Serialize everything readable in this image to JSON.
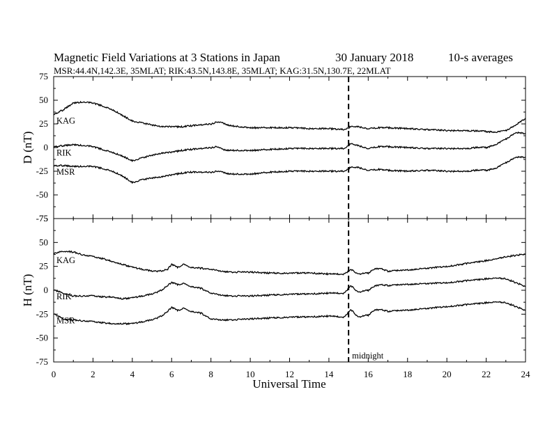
{
  "header": {
    "title": "Magnetic Field Variations at 3 Stations in Japan",
    "date": "30 January  2018",
    "averaging": "10-s averages",
    "stations": "MSR:44.4N,142.3E, 35MLAT;  RIK:43.5N,143.8E, 35MLAT;  KAG:31.5N,130.7E, 22MLAT"
  },
  "chart_data": [
    {
      "type": "line",
      "panel": "D",
      "ylabel": "D (nT)",
      "ylim": [
        -75,
        75
      ],
      "yticks": [
        75,
        50,
        25,
        0,
        -25,
        -50,
        -75
      ],
      "xlim": [
        0,
        24
      ],
      "xticks": [
        0,
        2,
        4,
        6,
        8,
        10,
        12,
        14,
        16,
        18,
        20,
        22,
        24
      ],
      "grid": false,
      "series": [
        {
          "name": "KAG",
          "x": [
            0,
            0.5,
            1,
            1.5,
            2,
            2.5,
            3,
            3.5,
            4,
            4.5,
            5,
            5.5,
            6,
            6.5,
            7,
            7.5,
            8,
            8.3,
            8.6,
            9,
            9.5,
            10,
            11,
            12,
            13,
            14,
            14.8,
            15.1,
            15.5,
            16,
            16.5,
            17,
            18,
            19,
            20,
            21,
            22,
            22.5,
            23,
            23.5,
            24
          ],
          "y": [
            35,
            40,
            47,
            48,
            47,
            44,
            40,
            34,
            28,
            26,
            24,
            22,
            22,
            22,
            23,
            24,
            25,
            27,
            26,
            23,
            22,
            21,
            21,
            21,
            20,
            20,
            19,
            22,
            22,
            20,
            21,
            21,
            20,
            19,
            18,
            18,
            17,
            16,
            18,
            24,
            31
          ]
        },
        {
          "name": "RIK",
          "x": [
            0,
            0.5,
            1,
            1.5,
            2,
            2.5,
            3,
            3.5,
            4,
            4.5,
            5,
            5.5,
            6,
            6.5,
            7,
            7.5,
            8,
            8.3,
            8.6,
            9,
            9.5,
            10,
            11,
            12,
            13,
            14,
            14.8,
            15.1,
            15.5,
            16,
            16.5,
            17,
            18,
            19,
            20,
            21,
            21.5,
            22,
            22.5,
            23,
            23.5,
            24
          ],
          "y": [
            1,
            2,
            3,
            2,
            1,
            -2,
            -5,
            -9,
            -14,
            -11,
            -8,
            -6,
            -5,
            -3,
            -2,
            -1,
            0,
            1,
            -2,
            -3,
            -3,
            -3,
            -2,
            -1,
            -1,
            -1,
            -1,
            4,
            2,
            -1,
            1,
            1,
            0,
            -1,
            -1,
            -1,
            0,
            0,
            3,
            9,
            16,
            15
          ]
        },
        {
          "name": "MSR",
          "x": [
            0,
            0.5,
            1,
            1.5,
            2,
            2.5,
            3,
            3.5,
            4,
            4.5,
            5,
            5.5,
            6,
            6.5,
            7,
            7.5,
            8,
            8.3,
            8.6,
            9,
            9.5,
            10,
            11,
            12,
            13,
            14,
            14.8,
            15.1,
            15.5,
            16,
            16.5,
            17,
            18,
            19,
            20,
            21,
            21.5,
            22,
            22.5,
            23,
            23.5,
            24
          ],
          "y": [
            -19,
            -19,
            -20,
            -20,
            -20,
            -22,
            -25,
            -30,
            -37,
            -34,
            -32,
            -31,
            -29,
            -27,
            -26,
            -26,
            -26,
            -25,
            -26,
            -28,
            -28,
            -28,
            -26,
            -25,
            -25,
            -25,
            -25,
            -21,
            -21,
            -24,
            -23,
            -24,
            -25,
            -24,
            -25,
            -25,
            -24,
            -24,
            -22,
            -16,
            -10,
            -10
          ]
        }
      ]
    },
    {
      "type": "line",
      "panel": "H",
      "ylabel": "H (nT)",
      "ylim": [
        -75,
        75
      ],
      "yticks": [
        75,
        50,
        25,
        0,
        -25,
        -50,
        -75
      ],
      "xlim": [
        0,
        24
      ],
      "xticks": [
        0,
        2,
        4,
        6,
        8,
        10,
        12,
        14,
        16,
        18,
        20,
        22,
        24
      ],
      "xlabel": "Universal Time",
      "grid": false,
      "series": [
        {
          "name": "KAG",
          "x": [
            0,
            0.5,
            1,
            1.5,
            2,
            2.5,
            3,
            3.5,
            4,
            4.5,
            5,
            5.5,
            5.8,
            6,
            6.3,
            6.6,
            7,
            7.5,
            8,
            8.5,
            9,
            10,
            11,
            12,
            13,
            14,
            14.8,
            15.1,
            15.5,
            16,
            16.3,
            16.6,
            17,
            18,
            19,
            20,
            21,
            22,
            23,
            24
          ],
          "y": [
            38,
            41,
            40,
            37,
            35,
            33,
            30,
            27,
            24,
            22,
            20,
            20,
            22,
            27,
            24,
            27,
            24,
            23,
            22,
            20,
            19,
            19,
            18,
            18,
            18,
            17,
            17,
            22,
            17,
            18,
            22,
            23,
            20,
            21,
            23,
            25,
            28,
            31,
            35,
            38
          ]
        },
        {
          "name": "RIK",
          "x": [
            0,
            0.5,
            1,
            1.5,
            2,
            2.5,
            3,
            3.5,
            4,
            4.5,
            5,
            5.5,
            5.8,
            6,
            6.3,
            6.6,
            7,
            7.5,
            8,
            8.5,
            9,
            10,
            11,
            12,
            13,
            14,
            14.8,
            15.1,
            15.5,
            16,
            16.3,
            16.6,
            17,
            18,
            19,
            20,
            21,
            22,
            22.5,
            23,
            23.5,
            24
          ],
          "y": [
            0,
            -3,
            -6,
            -6,
            -6,
            -7,
            -7,
            -9,
            -8,
            -6,
            -4,
            0,
            5,
            8,
            6,
            7,
            4,
            2,
            -3,
            -5,
            -6,
            -6,
            -5,
            -4,
            -4,
            -3,
            -3,
            5,
            -2,
            0,
            4,
            6,
            5,
            6,
            7,
            8,
            10,
            12,
            13,
            12,
            8,
            4
          ]
        },
        {
          "name": "MSR",
          "x": [
            0,
            0.5,
            1,
            1.5,
            2,
            2.5,
            3,
            3.5,
            4,
            4.5,
            5,
            5.5,
            5.8,
            6,
            6.3,
            6.6,
            7,
            7.5,
            8,
            8.5,
            9,
            10,
            11,
            12,
            13,
            14,
            14.8,
            15.1,
            15.5,
            16,
            16.3,
            16.6,
            17,
            18,
            19,
            20,
            21,
            22,
            22.5,
            23,
            23.5,
            24
          ],
          "y": [
            -25,
            -30,
            -31,
            -32,
            -33,
            -34,
            -35,
            -35,
            -35,
            -33,
            -31,
            -27,
            -22,
            -18,
            -21,
            -19,
            -22,
            -24,
            -30,
            -31,
            -31,
            -30,
            -29,
            -28,
            -28,
            -27,
            -28,
            -20,
            -28,
            -26,
            -21,
            -20,
            -22,
            -21,
            -19,
            -17,
            -15,
            -13,
            -12,
            -13,
            -17,
            -21
          ]
        }
      ]
    }
  ],
  "annotations": {
    "midnight_label": "midnight",
    "midnight_ut": 15
  }
}
